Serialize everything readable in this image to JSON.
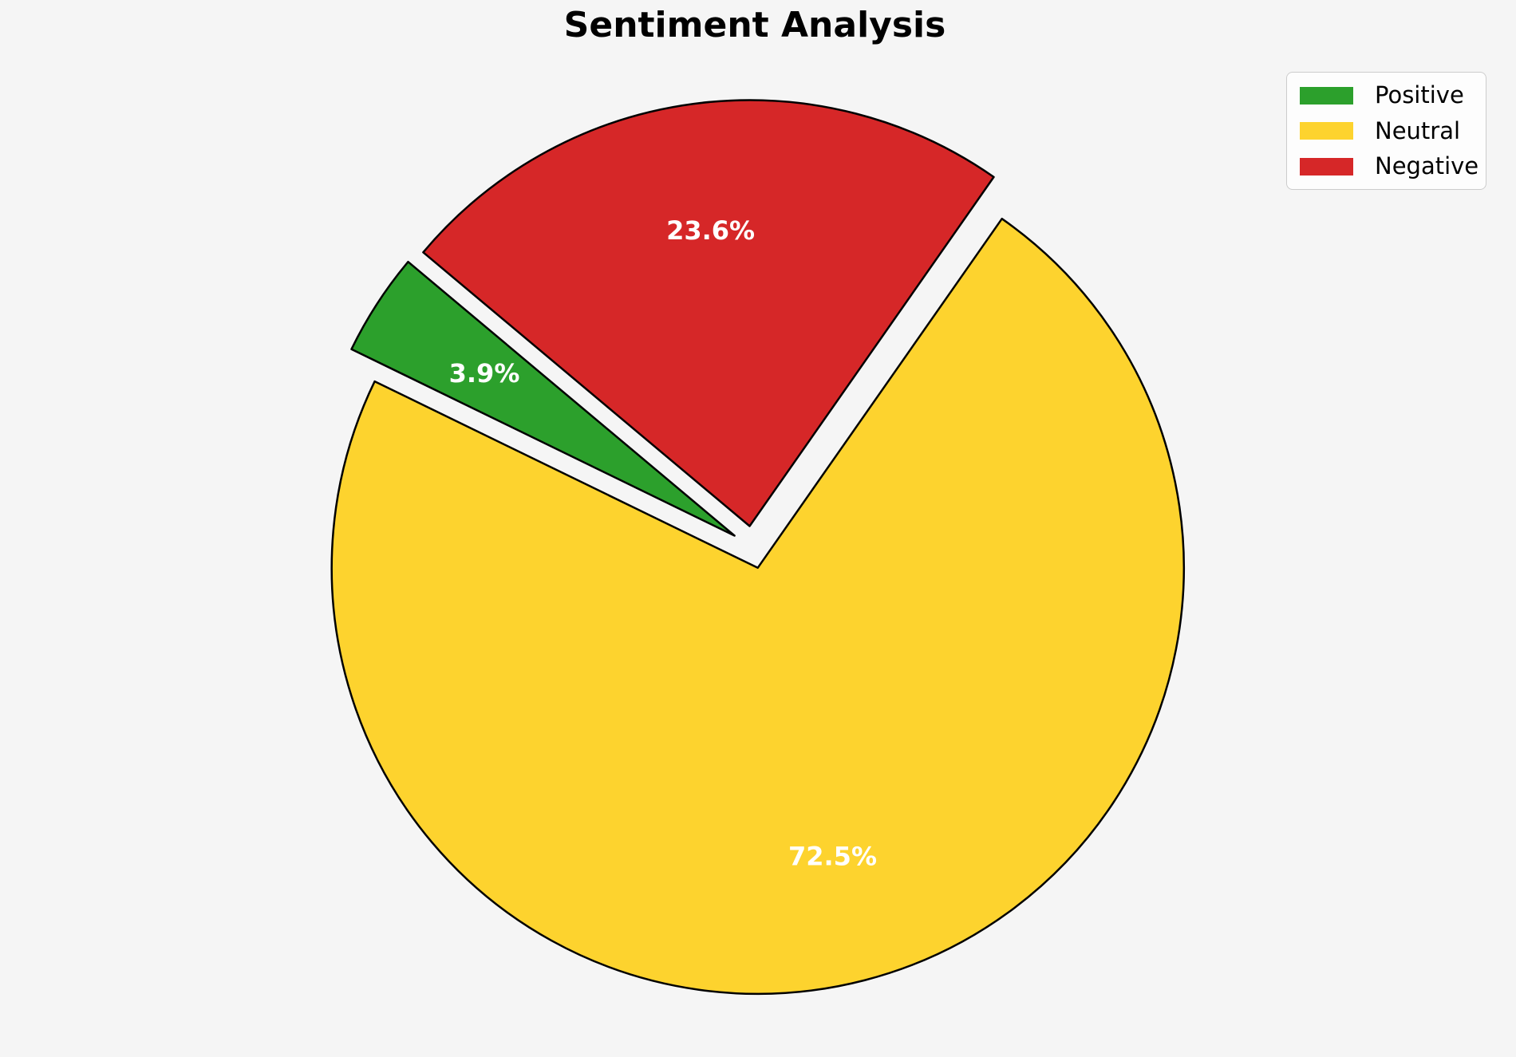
{
  "title": "Sentiment Analysis",
  "colors": {
    "background": "#f5f5f5",
    "legend_background": "#fdfdfd",
    "legend_border": "#cccccc",
    "wedge_edge": "#000000",
    "percent_label_text": "#ffffff",
    "title_text": "#000000"
  },
  "chart_data": {
    "type": "pie",
    "title": "Sentiment Analysis",
    "slices": [
      {
        "label": "Positive",
        "value": 3.9,
        "pct_label": "3.9%",
        "color": "#2ca02c"
      },
      {
        "label": "Neutral",
        "value": 72.5,
        "pct_label": "72.5%",
        "color": "#fdd32e"
      },
      {
        "label": "Negative",
        "value": 23.6,
        "pct_label": "23.6%",
        "color": "#d62728"
      }
    ],
    "startangle": 140,
    "counterclockwise": true,
    "explode": 0.05,
    "pctdistance": 0.7,
    "legend_position": "upper right",
    "legend_entries": [
      "Positive",
      "Neutral",
      "Negative"
    ]
  }
}
